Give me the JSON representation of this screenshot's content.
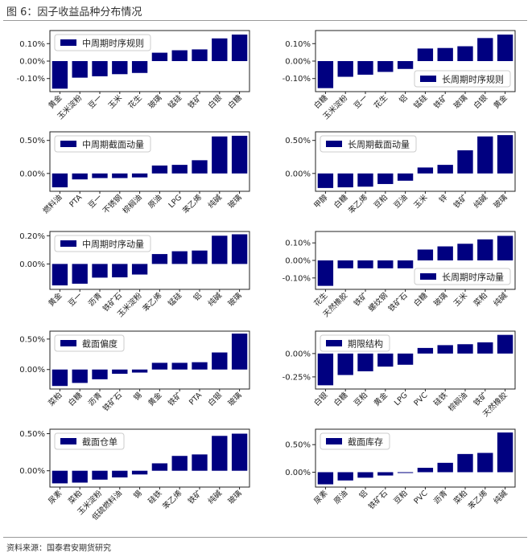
{
  "page": {
    "title": "图 6：因子收益品种分布情况",
    "source": "资料来源：国泰君安期货研究"
  },
  "colors": {
    "bar": "#000080",
    "axis": "#222222"
  },
  "chart_data": [
    {
      "type": "bar",
      "legend": "中周期时序规则",
      "legend_pos": "top-left",
      "categories": [
        "黄金",
        "玉米淀粉",
        "豆一",
        "玉米",
        "花生",
        "玻璃",
        "锰硅",
        "铁矿",
        "白银",
        "白糖"
      ],
      "values": [
        -0.158,
        -0.095,
        -0.087,
        -0.075,
        -0.068,
        0.048,
        0.062,
        0.067,
        0.13,
        0.152
      ],
      "ylim": [
        -0.175,
        0.175
      ],
      "yticks": [
        0.001,
        0.0,
        -0.001
      ],
      "ytick_labels": [
        "0.10%",
        "0.00%",
        "-0.10%"
      ]
    },
    {
      "type": "bar",
      "legend": "长周期时序规则",
      "legend_pos": "bottom-right",
      "categories": [
        "白糖",
        "玉米淀粉",
        "豆一",
        "花生",
        "铝",
        "锰硅",
        "铁矿",
        "玻璃",
        "白银",
        "黄金"
      ],
      "values": [
        -0.155,
        -0.09,
        -0.078,
        -0.062,
        -0.045,
        0.072,
        0.075,
        0.085,
        0.132,
        0.152
      ],
      "ylim": [
        -0.175,
        0.175
      ],
      "yticks": [
        0.001,
        0.0,
        -0.001
      ],
      "ytick_labels": [
        "0.10%",
        "0.00%",
        "-0.10%"
      ]
    },
    {
      "type": "bar",
      "legend": "中周期截面动量",
      "legend_pos": "top-left",
      "categories": [
        "燃料油",
        "PTA",
        "豆一",
        "不锈钢",
        "棕榈油",
        "原油",
        "LPG",
        "苯乙烯",
        "纯碱",
        "玻璃"
      ],
      "values": [
        -0.21,
        -0.09,
        -0.07,
        -0.07,
        -0.06,
        0.12,
        0.13,
        0.2,
        0.56,
        0.57
      ],
      "ylim": [
        -0.27,
        0.63
      ],
      "yticks": [
        0.005,
        0.0
      ],
      "ytick_labels": [
        "0.50%",
        "0.00%"
      ]
    },
    {
      "type": "bar",
      "legend": "长周期截面动量",
      "legend_pos": "top-left",
      "categories": [
        "甲醇",
        "白糖",
        "苯乙烯",
        "豆粕",
        "豆油",
        "玉米",
        "锌",
        "铁矿",
        "纯碱",
        "玻璃"
      ],
      "values": [
        -0.22,
        -0.21,
        -0.2,
        -0.16,
        -0.11,
        0.09,
        0.13,
        0.35,
        0.56,
        0.58
      ],
      "ylim": [
        -0.27,
        0.63
      ],
      "yticks": [
        0.005,
        0.0
      ],
      "ytick_labels": [
        "0.50%",
        "0.00%"
      ]
    },
    {
      "type": "bar",
      "legend": "中周期时序动量",
      "legend_pos": "top-left",
      "categories": [
        "黄金",
        "豆一",
        "沥青",
        "铁矿石",
        "玉米淀粉",
        "苯乙烯",
        "锰硅",
        "铝",
        "纯碱",
        "玻璃"
      ],
      "values": [
        -0.152,
        -0.14,
        -0.097,
        -0.095,
        -0.075,
        0.07,
        0.09,
        0.095,
        0.2,
        0.21
      ],
      "ylim": [
        -0.18,
        0.23
      ],
      "yticks": [
        0.002,
        0.0
      ],
      "ytick_labels": [
        "0.20%",
        "0.00%"
      ]
    },
    {
      "type": "bar",
      "legend": "长周期时序动量",
      "legend_pos": "bottom-right",
      "categories": [
        "花生",
        "天然橡胶",
        "铁矿",
        "螺纹钢",
        "铁矿石",
        "白糖",
        "玻璃",
        "玉米",
        "菜粕",
        "纯碱"
      ],
      "values": [
        -0.145,
        -0.045,
        -0.045,
        -0.045,
        -0.045,
        0.062,
        0.08,
        0.095,
        0.12,
        0.14
      ],
      "ylim": [
        -0.165,
        0.165
      ],
      "yticks": [
        0.001,
        0.0,
        -0.001
      ],
      "ytick_labels": [
        "0.10%",
        "0.00%",
        "-0.10%"
      ]
    },
    {
      "type": "bar",
      "legend": "截面偏度",
      "legend_pos": "top-left",
      "categories": [
        "菜粕",
        "白糖",
        "沥青",
        "铁矿石",
        "锡",
        "黄金",
        "铁矿",
        "PTA",
        "白银",
        "玻璃"
      ],
      "values": [
        -0.27,
        -0.22,
        -0.16,
        -0.07,
        -0.05,
        0.11,
        0.11,
        0.12,
        0.28,
        0.59
      ],
      "ylim": [
        -0.32,
        0.63
      ],
      "yticks": [
        0.005,
        0.0
      ],
      "ytick_labels": [
        "0.50%",
        "0.00%"
      ]
    },
    {
      "type": "bar",
      "legend": "期限结构",
      "legend_pos": "top-left",
      "categories": [
        "白银",
        "白糖",
        "豆粕",
        "黄金",
        "LPG",
        "PVC",
        "硅铁",
        "棕榈油",
        "铁矿",
        "天然橡胶"
      ],
      "values": [
        -0.34,
        -0.23,
        -0.19,
        -0.14,
        -0.12,
        0.06,
        0.09,
        0.1,
        0.12,
        0.2
      ],
      "ylim": [
        -0.38,
        0.24
      ],
      "yticks": [
        0.0,
        -0.0025
      ],
      "ytick_labels": [
        "0.00%",
        "-0.25%"
      ]
    },
    {
      "type": "bar",
      "legend": "截面仓单",
      "legend_pos": "top-left",
      "categories": [
        "尿素",
        "菜粕",
        "玉米淀粉",
        "低硫燃料油",
        "锡",
        "硅铁",
        "苯乙烯",
        "铁矿",
        "纯碱",
        "玻璃"
      ],
      "values": [
        -0.17,
        -0.16,
        -0.12,
        -0.09,
        -0.05,
        0.1,
        0.2,
        0.22,
        0.47,
        0.5
      ],
      "ylim": [
        -0.22,
        0.56
      ],
      "yticks": [
        0.005,
        0.0
      ],
      "ytick_labels": [
        "0.50%",
        "0.00%"
      ]
    },
    {
      "type": "bar",
      "legend": "截面库存",
      "legend_pos": "top-left",
      "categories": [
        "尿素",
        "原油",
        "铝",
        "铁矿石",
        "豆粕",
        "PVC",
        "沥青",
        "菜粕",
        "苯乙烯",
        "纯碱"
      ],
      "values": [
        -0.22,
        -0.15,
        -0.1,
        -0.06,
        -0.01,
        0.08,
        0.17,
        0.33,
        0.35,
        0.72
      ],
      "ylim": [
        -0.27,
        0.78
      ],
      "yticks": [
        0.005,
        0.0
      ],
      "ytick_labels": [
        "0.50%",
        "0.00%"
      ]
    }
  ]
}
